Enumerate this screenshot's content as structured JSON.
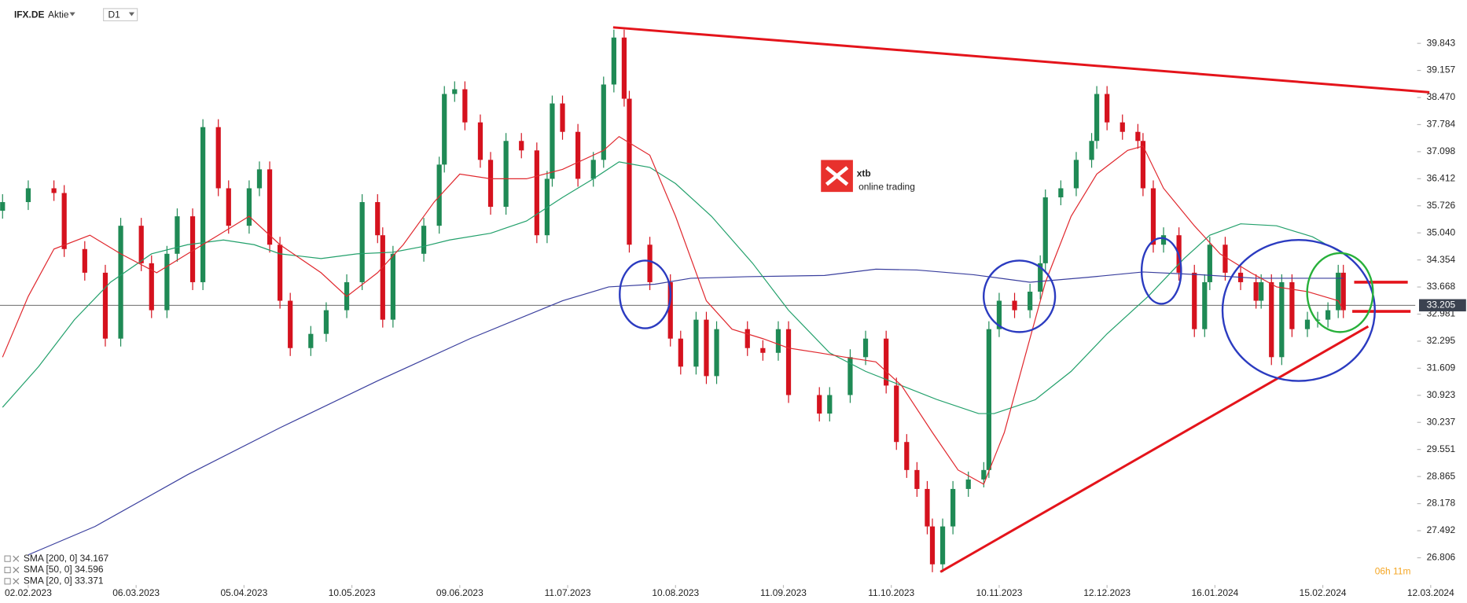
{
  "header": {
    "symbol": "IFX.DE",
    "instrument_type": "Aktie",
    "interval": "D1"
  },
  "logo": {
    "name": "xtb",
    "tagline": "online trading"
  },
  "countdown": "06h 11m",
  "chart_data": {
    "type": "candlestick",
    "up_color": "#1f8a55",
    "down_color": "#d5121e",
    "last_price": 33.205,
    "xlim": [
      -5.5,
      270
    ],
    "xticks": [
      {
        "value": 0,
        "label": "02.02.2023"
      },
      {
        "value": 21,
        "label": "06.03.2023"
      },
      {
        "value": 42,
        "label": "05.04.2023"
      },
      {
        "value": 63,
        "label": "10.05.2023"
      },
      {
        "value": 84,
        "label": "09.06.2023"
      },
      {
        "value": 105,
        "label": "11.07.2023"
      },
      {
        "value": 126,
        "label": "10.08.2023"
      },
      {
        "value": 147,
        "label": "11.09.2023"
      },
      {
        "value": 168,
        "label": "11.10.2023"
      },
      {
        "value": 189,
        "label": "10.11.2023"
      },
      {
        "value": 210,
        "label": "12.12.2023"
      },
      {
        "value": 231,
        "label": "16.01.2024"
      },
      {
        "value": 252,
        "label": "15.02.2024"
      },
      {
        "value": 273,
        "label": "12.03.2024"
      }
    ],
    "ylim": [
      26.115,
      40.939
    ],
    "yticks": [
      39.843,
      39.157,
      {
        "value": 38.47,
        "label": "38.470"
      },
      37.784,
      37.098,
      36.412,
      35.726,
      {
        "value": 35.04,
        "label": "35.040"
      },
      34.354,
      33.668,
      32.981,
      32.295,
      31.609,
      30.923,
      30.237,
      29.551,
      28.865,
      28.178,
      27.492,
      26.806
    ],
    "x": [
      -5,
      0,
      5,
      7,
      11,
      15,
      18,
      22,
      24,
      27,
      29,
      32,
      34,
      37,
      39,
      43,
      45,
      47,
      49,
      51,
      55,
      58,
      62,
      65,
      68,
      69,
      71,
      77,
      80,
      81,
      83,
      85,
      88,
      90,
      93,
      96,
      99,
      101,
      102,
      104,
      107,
      110,
      112,
      114,
      116,
      117,
      121,
      125,
      127,
      130,
      132,
      134,
      140,
      143,
      146,
      148,
      154,
      156,
      160,
      163,
      167,
      169,
      171,
      173,
      175,
      176,
      178,
      180,
      183,
      186,
      187,
      189,
      192,
      195,
      197,
      198,
      201,
      204,
      207,
      208,
      210,
      213,
      216,
      217,
      219,
      221,
      224,
      227,
      229,
      230,
      233,
      236,
      239,
      240,
      242,
      244,
      246,
      249,
      251,
      253,
      255,
      256
    ],
    "open": [
      35.6,
      35.82,
      36.17,
      36.05,
      34.63,
      34.03,
      32.36,
      35.22,
      34.27,
      33.08,
      34.51,
      35.46,
      33.79,
      37.72,
      36.17,
      35.22,
      36.17,
      36.65,
      34.74,
      33.32,
      32.12,
      32.48,
      33.08,
      33.79,
      35.82,
      34.98,
      32.84,
      34.51,
      35.22,
      36.77,
      38.56,
      38.68,
      37.84,
      36.89,
      35.7,
      37.37,
      37.13,
      34.98,
      36.41,
      38.32,
      37.6,
      36.41,
      36.89,
      38.8,
      39.99,
      38.44,
      34.74,
      33.79,
      32.36,
      31.65,
      32.84,
      31.41,
      32.6,
      32.12,
      32.0,
      32.6,
      30.93,
      30.46,
      30.93,
      31.89,
      32.36,
      31.17,
      29.74,
      29.03,
      28.55,
      27.6,
      26.64,
      27.6,
      28.55,
      28.79,
      29.03,
      32.6,
      33.32,
      33.08,
      33.55,
      34.27,
      35.94,
      36.17,
      36.89,
      37.37,
      38.56,
      37.84,
      37.6,
      37.37,
      36.17,
      34.74,
      34.98,
      34.03,
      32.6,
      33.79,
      34.74,
      34.03,
      33.79,
      33.32,
      33.79,
      31.89,
      33.79,
      32.6,
      32.84,
      32.84,
      33.08,
      34.03
    ],
    "high": [
      36.02,
      36.37,
      36.37,
      36.25,
      34.83,
      34.23,
      35.42,
      35.42,
      34.47,
      34.71,
      35.66,
      35.66,
      37.92,
      37.92,
      36.37,
      36.37,
      36.85,
      36.85,
      34.94,
      33.52,
      32.68,
      33.28,
      33.99,
      36.02,
      36.02,
      35.18,
      34.71,
      35.42,
      36.97,
      38.76,
      38.88,
      38.88,
      38.04,
      37.09,
      37.57,
      37.57,
      37.33,
      36.61,
      38.52,
      38.52,
      37.8,
      37.09,
      39.0,
      40.19,
      40.19,
      38.64,
      34.94,
      33.99,
      32.56,
      33.04,
      33.04,
      32.8,
      32.8,
      32.32,
      32.8,
      32.8,
      31.13,
      31.13,
      32.09,
      32.56,
      32.56,
      31.37,
      29.94,
      29.23,
      28.75,
      27.8,
      27.8,
      28.75,
      28.99,
      29.23,
      32.8,
      33.52,
      33.52,
      33.75,
      34.47,
      36.14,
      36.37,
      37.09,
      37.57,
      38.76,
      38.76,
      38.04,
      37.8,
      37.57,
      36.37,
      35.18,
      35.18,
      34.23,
      33.99,
      34.94,
      34.94,
      34.23,
      33.99,
      33.99,
      33.99,
      33.99,
      33.99,
      33.04,
      33.04,
      33.28,
      34.23,
      34.23
    ],
    "low": [
      35.4,
      35.62,
      35.85,
      34.43,
      33.83,
      32.16,
      32.16,
      34.07,
      32.88,
      32.88,
      34.31,
      33.59,
      33.59,
      35.97,
      35.02,
      35.02,
      35.97,
      34.54,
      33.12,
      31.92,
      31.92,
      32.28,
      32.88,
      33.59,
      34.78,
      32.64,
      32.64,
      34.31,
      35.02,
      36.57,
      38.36,
      37.64,
      36.69,
      35.5,
      35.5,
      36.93,
      34.78,
      34.78,
      36.21,
      37.4,
      36.21,
      36.21,
      36.69,
      38.6,
      38.24,
      34.54,
      33.59,
      32.16,
      31.45,
      31.45,
      31.21,
      31.21,
      31.92,
      31.8,
      31.8,
      30.73,
      30.26,
      30.26,
      30.73,
      31.69,
      30.97,
      29.54,
      28.83,
      28.35,
      27.4,
      26.44,
      26.44,
      27.4,
      28.35,
      28.59,
      28.83,
      32.4,
      32.88,
      32.88,
      33.35,
      34.07,
      35.74,
      35.97,
      36.69,
      37.17,
      37.64,
      37.4,
      37.17,
      35.97,
      34.54,
      34.54,
      33.83,
      32.4,
      32.4,
      33.59,
      33.83,
      33.59,
      33.12,
      33.12,
      31.69,
      31.69,
      32.4,
      32.4,
      32.64,
      32.64,
      32.88,
      32.88
    ],
    "close": [
      35.82,
      36.17,
      36.05,
      34.63,
      34.03,
      32.36,
      35.22,
      34.27,
      33.08,
      34.51,
      35.46,
      33.79,
      37.72,
      36.17,
      35.22,
      36.17,
      36.65,
      34.74,
      33.32,
      32.12,
      32.48,
      33.08,
      33.79,
      35.82,
      34.98,
      32.84,
      34.51,
      35.22,
      36.77,
      38.56,
      38.68,
      37.84,
      36.89,
      35.7,
      37.37,
      37.13,
      34.98,
      36.41,
      38.32,
      37.6,
      36.41,
      36.89,
      38.8,
      39.99,
      38.44,
      34.74,
      33.79,
      32.36,
      31.65,
      32.84,
      31.41,
      32.6,
      32.12,
      32.0,
      32.6,
      30.93,
      30.46,
      30.93,
      31.89,
      32.36,
      31.17,
      29.74,
      29.03,
      28.55,
      27.6,
      26.64,
      27.6,
      28.55,
      28.79,
      29.03,
      32.6,
      33.32,
      33.08,
      33.55,
      34.27,
      35.94,
      36.17,
      36.89,
      37.37,
      38.56,
      37.84,
      37.6,
      37.37,
      36.17,
      34.74,
      34.98,
      34.03,
      32.6,
      33.79,
      34.74,
      34.03,
      33.79,
      33.32,
      33.79,
      31.89,
      33.79,
      32.6,
      32.84,
      32.84,
      33.08,
      34.03,
      33.08
    ],
    "series": [
      {
        "name": "SMA [200, 0] 34.167",
        "color": "#3a3f9e",
        "x": [
          0,
          13,
          31,
          49,
          68,
          86,
          104,
          113,
          122,
          129,
          140,
          155,
          165,
          173,
          184,
          195,
          206,
          217,
          228,
          239,
          256
        ],
        "values": [
          26.88,
          27.6,
          28.91,
          30.1,
          31.29,
          32.36,
          33.32,
          33.67,
          33.74,
          33.89,
          33.93,
          33.96,
          34.12,
          34.1,
          33.98,
          33.79,
          33.91,
          34.05,
          33.98,
          33.89,
          33.89
        ]
      },
      {
        "name": "SMA [50, 0] 34.596",
        "color": "#22a06b",
        "x": [
          -5,
          2,
          9,
          16,
          24,
          31,
          38,
          44,
          49,
          57,
          64,
          71,
          77,
          82,
          90,
          97,
          104,
          110,
          115,
          121,
          126,
          133,
          141,
          148,
          156,
          163,
          170,
          177,
          185,
          188,
          196,
          203,
          210,
          218,
          225,
          230,
          236,
          243,
          250,
          256
        ],
        "values": [
          30.62,
          31.65,
          32.84,
          33.79,
          34.51,
          34.74,
          34.86,
          34.74,
          34.51,
          34.39,
          34.51,
          34.55,
          34.7,
          34.86,
          35.03,
          35.34,
          35.94,
          36.41,
          36.84,
          36.7,
          36.29,
          35.46,
          34.27,
          33.08,
          32.0,
          31.53,
          31.17,
          30.81,
          30.46,
          30.46,
          30.81,
          31.53,
          32.48,
          33.43,
          34.39,
          34.98,
          35.27,
          35.22,
          34.94,
          34.51
        ]
      },
      {
        "name": "SMA [20, 0] 33.371",
        "color": "#e0282e",
        "x": [
          -5,
          0,
          5,
          12,
          18,
          25,
          31,
          37,
          43,
          49,
          57,
          62,
          68,
          73,
          79,
          84,
          90,
          97,
          104,
          112,
          115,
          121,
          126,
          132,
          137,
          143,
          148,
          154,
          159,
          165,
          170,
          176,
          181,
          186,
          190,
          194,
          198,
          203,
          208,
          214,
          217,
          221,
          227,
          232,
          238,
          243,
          249,
          255,
          256
        ],
        "values": [
          31.89,
          33.43,
          34.63,
          34.98,
          34.51,
          34.03,
          34.51,
          34.98,
          35.46,
          34.74,
          34.03,
          33.43,
          34.03,
          34.74,
          35.82,
          36.53,
          36.41,
          36.41,
          36.65,
          37.13,
          37.48,
          37.01,
          35.46,
          33.32,
          32.6,
          32.36,
          32.12,
          32.0,
          31.89,
          31.77,
          31.17,
          29.98,
          29.03,
          28.67,
          29.98,
          31.89,
          33.79,
          35.46,
          36.53,
          37.13,
          37.24,
          36.17,
          35.22,
          34.51,
          34.03,
          33.67,
          33.55,
          33.32,
          33.08
        ]
      }
    ]
  }
}
